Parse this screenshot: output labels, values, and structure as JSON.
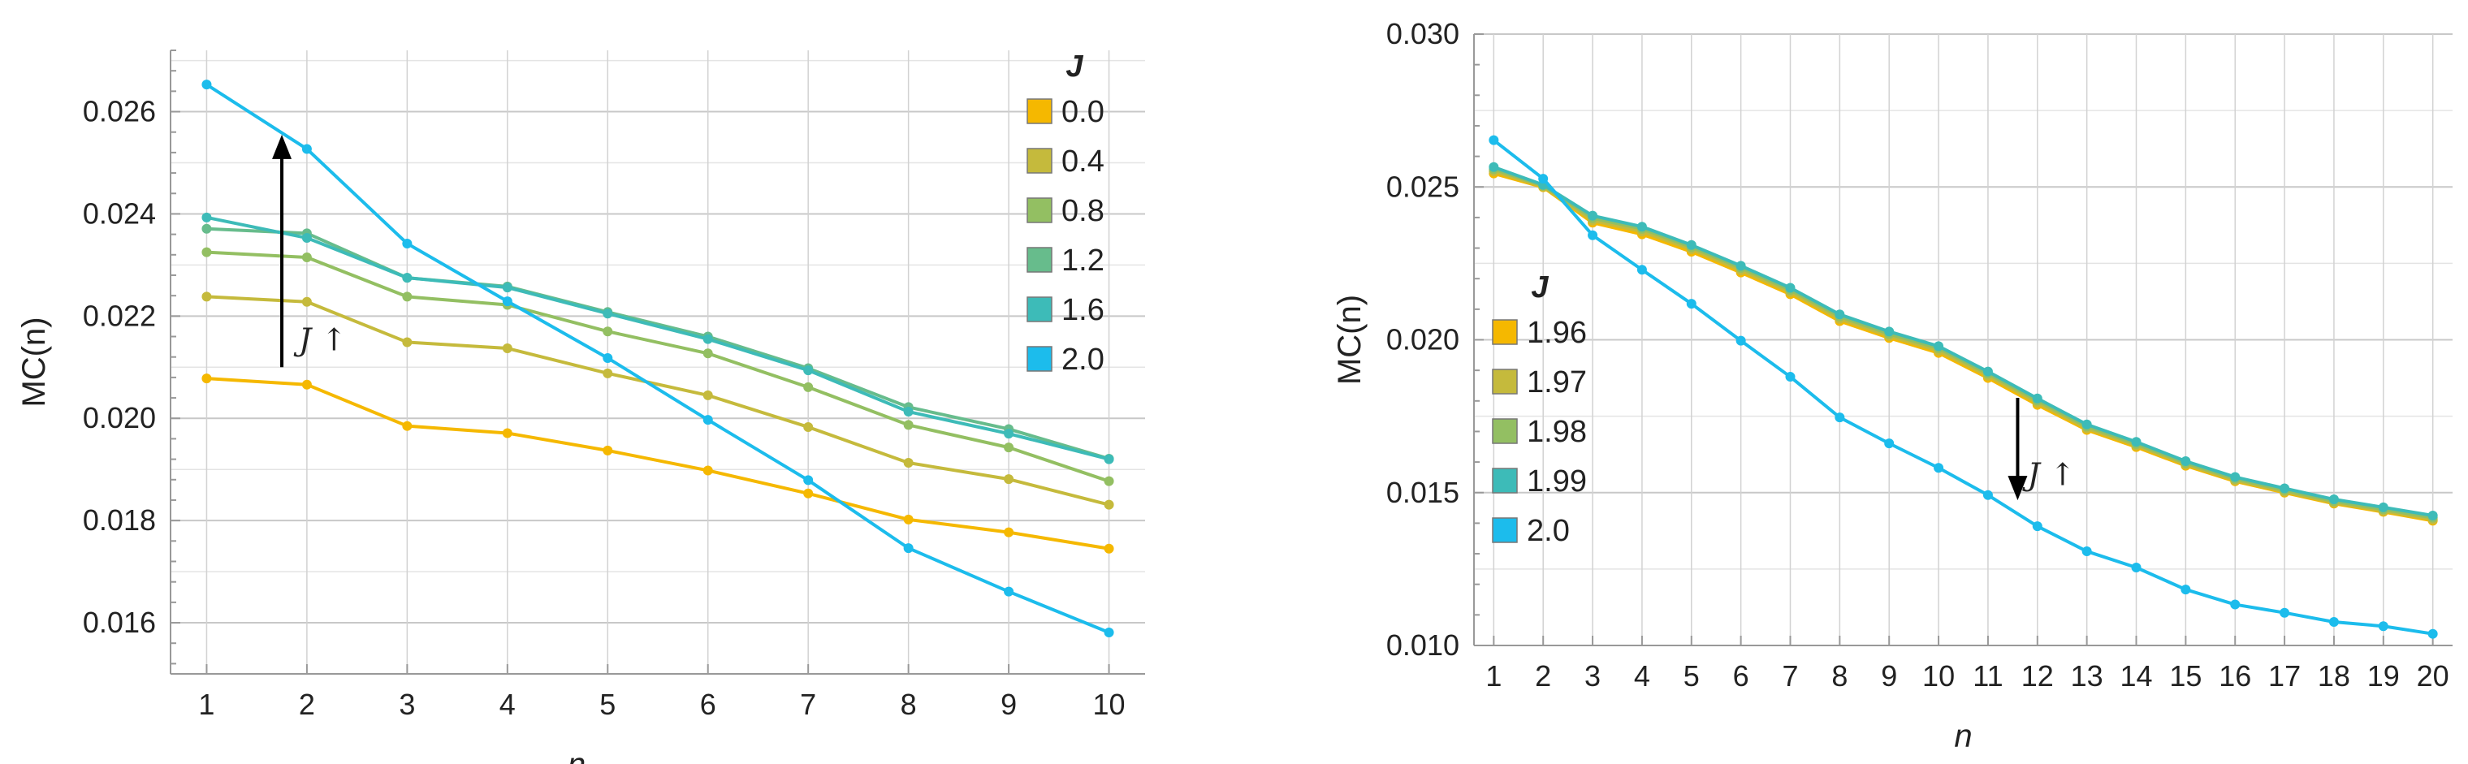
{
  "chart_data": [
    {
      "type": "line",
      "xlabel": "n",
      "ylabel": "MC(n)",
      "x": [
        1,
        2,
        3,
        4,
        5,
        6,
        7,
        8,
        9,
        10
      ],
      "xticks": [
        "1",
        "2",
        "3",
        "4",
        "5",
        "6",
        "7",
        "8",
        "9",
        "10"
      ],
      "ylim": [
        0.015,
        0.0272
      ],
      "yticks": [
        0.016,
        0.018,
        0.02,
        0.022,
        0.024,
        0.026
      ],
      "ytick_labels": [
        "0.016",
        "0.018",
        "0.020",
        "0.022",
        "0.024",
        "0.026"
      ],
      "grid": true,
      "legend_title": "J",
      "legend_position": "top-right",
      "series": [
        {
          "name": "0.0",
          "color": "#F5B800",
          "values": [
            0.02078,
            0.02066,
            0.01985,
            0.01971,
            0.01937,
            0.01898,
            0.01853,
            0.01802,
            0.01777,
            0.01745
          ]
        },
        {
          "name": "0.4",
          "color": "#C5BA3C",
          "values": [
            0.02238,
            0.02228,
            0.02149,
            0.02137,
            0.02088,
            0.02045,
            0.01983,
            0.01913,
            0.01881,
            0.01831
          ]
        },
        {
          "name": "0.8",
          "color": "#93BF62",
          "values": [
            0.02325,
            0.02315,
            0.02238,
            0.02222,
            0.0217,
            0.02127,
            0.02061,
            0.01987,
            0.01943,
            0.01877
          ]
        },
        {
          "name": "1.2",
          "color": "#67BC8C",
          "values": [
            0.02371,
            0.02362,
            0.02275,
            0.02258,
            0.02208,
            0.0216,
            0.02098,
            0.02022,
            0.01979,
            0.01921
          ]
        },
        {
          "name": "1.6",
          "color": "#3DBBB8",
          "values": [
            0.02393,
            0.02353,
            0.02275,
            0.02256,
            0.02205,
            0.02155,
            0.02094,
            0.02013,
            0.0197,
            0.0192
          ]
        },
        {
          "name": "2.0",
          "color": "#1CBCEC",
          "values": [
            0.02653,
            0.02527,
            0.02342,
            0.02229,
            0.02118,
            0.01997,
            0.01879,
            0.01746,
            0.01661,
            0.01581
          ]
        }
      ],
      "annotation": {
        "text": "J ↑",
        "arrow_direction": "up",
        "arrow_x": 1.75,
        "arrow_from": 0.021,
        "arrow_to": 0.02555,
        "text_x": 1.92,
        "text_y": 0.02133
      }
    },
    {
      "type": "line",
      "xlabel": "n",
      "ylabel": "MC(n)",
      "x": [
        1,
        2,
        3,
        4,
        5,
        6,
        7,
        8,
        9,
        10,
        11,
        12,
        13,
        14,
        15,
        16,
        17,
        18,
        19,
        20
      ],
      "xticks": [
        "1",
        "2",
        "3",
        "4",
        "5",
        "6",
        "7",
        "8",
        "9",
        "10",
        "11",
        "12",
        "13",
        "14",
        "15",
        "16",
        "17",
        "18",
        "19",
        "20"
      ],
      "ylim": [
        0.01,
        0.03
      ],
      "yticks": [
        0.01,
        0.015,
        0.02,
        0.025,
        0.03
      ],
      "ytick_labels": [
        "0.010",
        "0.015",
        "0.020",
        "0.025",
        "0.030"
      ],
      "grid": true,
      "legend_title": "J",
      "legend_position": "center-left",
      "series": [
        {
          "name": "1.96",
          "color": "#F5B800",
          "values": [
            0.02544,
            0.02499,
            0.02383,
            0.02345,
            0.02288,
            0.0222,
            0.02149,
            0.02061,
            0.02006,
            0.01957,
            0.01875,
            0.01787,
            0.01705,
            0.01649,
            0.01588,
            0.01537,
            0.015,
            0.01464,
            0.01437,
            0.01408
          ]
        },
        {
          "name": "1.97",
          "color": "#C5BA3C",
          "values": [
            0.02551,
            0.02501,
            0.0239,
            0.02354,
            0.02296,
            0.02227,
            0.02156,
            0.02068,
            0.02012,
            0.01964,
            0.01882,
            0.01794,
            0.0171,
            0.01654,
            0.01592,
            0.0154,
            0.01503,
            0.01467,
            0.0144,
            0.01412
          ]
        },
        {
          "name": "1.98",
          "color": "#93BF62",
          "values": [
            0.02558,
            0.02504,
            0.02398,
            0.02363,
            0.02303,
            0.02235,
            0.02163,
            0.02076,
            0.02019,
            0.01972,
            0.01889,
            0.01801,
            0.01716,
            0.01659,
            0.01597,
            0.01545,
            0.01508,
            0.01472,
            0.01445,
            0.01418
          ]
        },
        {
          "name": "1.99",
          "color": "#3DBBB8",
          "values": [
            0.02565,
            0.02507,
            0.02406,
            0.0237,
            0.0231,
            0.02242,
            0.0217,
            0.02083,
            0.02027,
            0.01979,
            0.01896,
            0.01808,
            0.01723,
            0.01666,
            0.01603,
            0.01551,
            0.01514,
            0.01478,
            0.01452,
            0.01425
          ]
        },
        {
          "name": "2.0",
          "color": "#1CBCEC",
          "values": [
            0.02653,
            0.02527,
            0.02342,
            0.02229,
            0.02118,
            0.01997,
            0.01879,
            0.01746,
            0.01661,
            0.01581,
            0.01492,
            0.0139,
            0.01308,
            0.01255,
            0.01183,
            0.01134,
            0.01107,
            0.01077,
            0.01063,
            0.01038
          ]
        }
      ],
      "annotation": {
        "text": "J ↑",
        "arrow_direction": "down",
        "arrow_x": 11.6,
        "arrow_from": 0.0181,
        "arrow_to": 0.01475,
        "text_x": 11.8,
        "text_y": 0.01525
      }
    }
  ]
}
